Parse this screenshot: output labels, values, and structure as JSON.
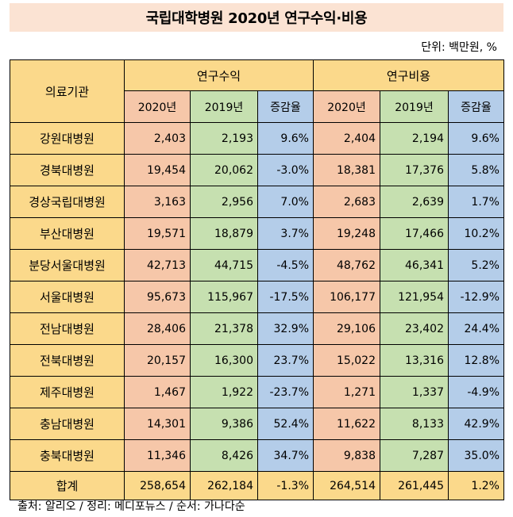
{
  "title": "국립대학병원 2020년 연구수익·비용",
  "unit": "단위: 백만원, %",
  "headers": {
    "institution": "의료기관",
    "revenue_group": "연구수익",
    "cost_group": "연구비용",
    "y2020": "2020년",
    "y2019": "2019년",
    "change": "증감율"
  },
  "rows": [
    {
      "name": "강원대병원",
      "rev20": "2,403",
      "rev19": "2,193",
      "revPct": "9.6%",
      "cost20": "2,404",
      "cost19": "2,194",
      "costPct": "9.6%"
    },
    {
      "name": "경북대병원",
      "rev20": "19,454",
      "rev19": "20,062",
      "revPct": "-3.0%",
      "cost20": "18,381",
      "cost19": "17,376",
      "costPct": "5.8%"
    },
    {
      "name": "경상국립대병원",
      "rev20": "3,163",
      "rev19": "2,956",
      "revPct": "7.0%",
      "cost20": "2,683",
      "cost19": "2,639",
      "costPct": "1.7%"
    },
    {
      "name": "부산대병원",
      "rev20": "19,571",
      "rev19": "18,879",
      "revPct": "3.7%",
      "cost20": "19,248",
      "cost19": "17,466",
      "costPct": "10.2%"
    },
    {
      "name": "분당서울대병원",
      "rev20": "42,713",
      "rev19": "44,715",
      "revPct": "-4.5%",
      "cost20": "48,762",
      "cost19": "46,341",
      "costPct": "5.2%"
    },
    {
      "name": "서울대병원",
      "rev20": "95,673",
      "rev19": "115,967",
      "revPct": "-17.5%",
      "cost20": "106,177",
      "cost19": "121,954",
      "costPct": "-12.9%"
    },
    {
      "name": "전남대병원",
      "rev20": "28,406",
      "rev19": "21,378",
      "revPct": "32.9%",
      "cost20": "29,106",
      "cost19": "23,402",
      "costPct": "24.4%"
    },
    {
      "name": "전북대병원",
      "rev20": "20,157",
      "rev19": "16,300",
      "revPct": "23.7%",
      "cost20": "15,022",
      "cost19": "13,316",
      "costPct": "12.8%"
    },
    {
      "name": "제주대병원",
      "rev20": "1,467",
      "rev19": "1,922",
      "revPct": "-23.7%",
      "cost20": "1,271",
      "cost19": "1,337",
      "costPct": "-4.9%"
    },
    {
      "name": "충남대병원",
      "rev20": "14,301",
      "rev19": "9,386",
      "revPct": "52.4%",
      "cost20": "11,622",
      "cost19": "8,133",
      "costPct": "42.9%"
    },
    {
      "name": "충북대병원",
      "rev20": "11,346",
      "rev19": "8,426",
      "revPct": "34.7%",
      "cost20": "9,838",
      "cost19": "7,287",
      "costPct": "35.0%"
    }
  ],
  "total": {
    "name": "합계",
    "rev20": "258,654",
    "rev19": "262,184",
    "revPct": "-1.3%",
    "cost20": "264,514",
    "cost19": "261,445",
    "costPct": "1.2%"
  },
  "source": "출처: 알리오 / 정리: 메디포뉴스 / 순서: 가나다순",
  "colors": {
    "title_bg": "#fbe3d3",
    "name_bg": "#fbd98b",
    "y2020_bg": "#f6c7a9",
    "y2019_bg": "#c6e0b0",
    "pct_bg": "#b4cde9"
  }
}
